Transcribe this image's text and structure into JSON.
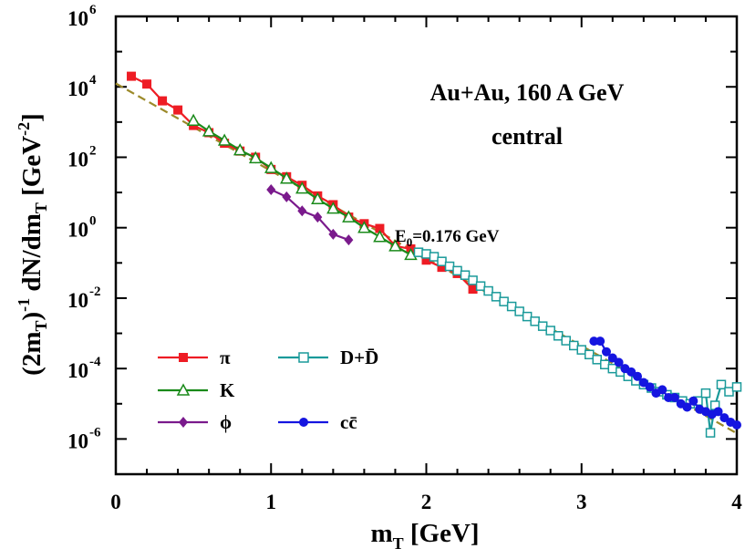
{
  "chart_data": {
    "type": "line",
    "yscale": "log",
    "title": [
      "Au+Au,  160 A GeV",
      "central"
    ],
    "xlabel": "m_T [GeV]",
    "ylabel": "(2m_T)^-1 dN/dm_T [GeV^-2]",
    "xlim": [
      0,
      4
    ],
    "ylim": [
      1e-07,
      1000000.0
    ],
    "xticks": [
      0,
      1,
      2,
      3,
      4
    ],
    "yticks": [
      {
        "exp": "-6",
        "value": 1e-06
      },
      {
        "exp": "-4",
        "value": 0.0001
      },
      {
        "exp": "-2",
        "value": 0.01
      },
      {
        "exp": "0",
        "value": 1
      },
      {
        "exp": "2",
        "value": 100
      },
      {
        "exp": "4",
        "value": 10000
      },
      {
        "exp": "6",
        "value": 1000000
      }
    ],
    "annotation": {
      "label": "E",
      "sub": "0",
      "rest": "=0.176 GeV"
    },
    "fit": {
      "name": "exponential fit",
      "color": "#9c8a2a",
      "x0": 0.0,
      "y0": 12500,
      "x1": 4.0,
      "y1": 1.45e-06
    },
    "series": [
      {
        "name": "π",
        "color": "#ee1c24",
        "marker": "square-filled",
        "x": [
          0.1,
          0.2,
          0.3,
          0.4,
          0.5,
          0.6,
          0.7,
          0.8,
          0.9,
          1.0,
          1.1,
          1.2,
          1.3,
          1.4,
          1.5,
          1.6,
          1.7,
          1.8,
          1.9,
          2.0,
          2.1,
          2.2,
          2.3
        ],
        "y": [
          20000,
          12000,
          4000,
          2200,
          800,
          500,
          250,
          150,
          100,
          45,
          28,
          16,
          8,
          4.5,
          2,
          1.3,
          0.95,
          0.3,
          0.25,
          0.12,
          0.075,
          0.05,
          0.018
        ]
      },
      {
        "name": "K",
        "color": "#1a8a1a",
        "marker": "triangle-open",
        "x": [
          0.5,
          0.6,
          0.7,
          0.8,
          0.9,
          1.0,
          1.1,
          1.2,
          1.3,
          1.4,
          1.5,
          1.6,
          1.7,
          1.8,
          1.9
        ],
        "y": [
          1100,
          550,
          300,
          160,
          95,
          50,
          25,
          13,
          6.5,
          3.5,
          2,
          1,
          0.55,
          0.3,
          0.17
        ]
      },
      {
        "name": "ϕ",
        "color": "#7a1a8c",
        "marker": "diamond-filled",
        "x": [
          1.0,
          1.1,
          1.2,
          1.3,
          1.4,
          1.5
        ],
        "y": [
          12,
          7.5,
          3,
          2,
          0.65,
          0.45
        ]
      },
      {
        "name": "D+D̄",
        "color": "#1a9a9a",
        "marker": "square-open",
        "x": [
          1.95,
          2.0,
          2.05,
          2.1,
          2.15,
          2.2,
          2.25,
          2.3,
          2.35,
          2.4,
          2.45,
          2.5,
          2.55,
          2.6,
          2.65,
          2.7,
          2.75,
          2.8,
          2.85,
          2.9,
          2.95,
          3.0,
          3.05,
          3.1,
          3.15,
          3.2,
          3.25,
          3.3,
          3.35,
          3.4,
          3.45,
          3.5,
          3.55,
          3.6,
          3.65,
          3.7,
          3.75,
          3.8,
          3.83,
          3.86,
          3.9,
          3.95,
          4.0
        ],
        "y": [
          0.2,
          0.18,
          0.15,
          0.11,
          0.08,
          0.06,
          0.045,
          0.032,
          0.022,
          0.016,
          0.011,
          0.008,
          0.0058,
          0.0042,
          0.003,
          0.0022,
          0.0016,
          0.0012,
          0.00085,
          0.00062,
          0.00045,
          0.00034,
          0.00025,
          0.00018,
          0.00013,
          0.0001,
          8e-05,
          6e-05,
          4.5e-05,
          3.5e-05,
          2.8e-05,
          2.2e-05,
          1.8e-05,
          1.5e-05,
          1.2e-05,
          1e-05,
          1.2e-05,
          2e-05,
          1.5e-06,
          9e-06,
          3.5e-05,
          2.2e-05,
          3e-05
        ]
      },
      {
        "name": "cc̄",
        "color": "#1515e0",
        "marker": "circle-filled",
        "x": [
          3.08,
          3.12,
          3.16,
          3.2,
          3.24,
          3.28,
          3.32,
          3.36,
          3.4,
          3.44,
          3.48,
          3.52,
          3.56,
          3.6,
          3.64,
          3.68,
          3.72,
          3.76,
          3.8,
          3.84,
          3.88,
          3.92,
          3.96,
          4.0
        ],
        "y": [
          0.0006,
          0.0006,
          0.0003,
          0.0002,
          0.00015,
          0.0001,
          8e-05,
          6e-05,
          4e-05,
          3e-05,
          2e-05,
          2.5e-05,
          1.5e-05,
          1.5e-05,
          1e-05,
          8e-06,
          1.2e-05,
          7e-06,
          6e-06,
          5e-06,
          6e-06,
          4e-06,
          3e-06,
          2.5e-06
        ]
      }
    ]
  }
}
